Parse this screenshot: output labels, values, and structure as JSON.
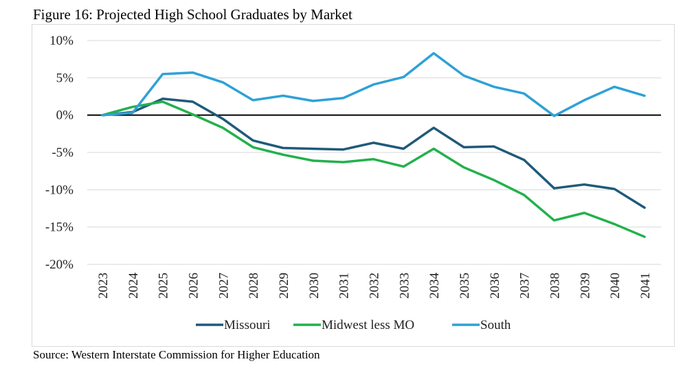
{
  "figure_title": "Figure 16: Projected High School Graduates by Market",
  "source": "Source: Western Interstate Commission for Higher Education",
  "chart_data": {
    "type": "line",
    "title": "Figure 16: Projected High School Graduates by Market",
    "xlabel": "",
    "ylabel": "",
    "categories": [
      "2023",
      "2024",
      "2025",
      "2026",
      "2027",
      "2028",
      "2029",
      "2030",
      "2031",
      "2032",
      "2033",
      "2034",
      "2035",
      "2036",
      "2037",
      "2038",
      "2039",
      "2040",
      "2041"
    ],
    "ylim": [
      -20,
      10
    ],
    "yticks": [
      10,
      5,
      0,
      -5,
      -10,
      -15,
      -20
    ],
    "ytick_labels": [
      "10%",
      "5%",
      "0%",
      "-5%",
      "-10%",
      "-15%",
      "-20%"
    ],
    "grid": true,
    "legend_position": "bottom",
    "series": [
      {
        "name": "Missouri",
        "color": "#1f5a7a",
        "values": [
          0.0,
          0.4,
          2.2,
          1.8,
          -0.5,
          -3.4,
          -4.4,
          -4.5,
          -4.6,
          -3.7,
          -4.5,
          -1.7,
          -4.3,
          -4.2,
          -6.0,
          -9.8,
          -9.3,
          -9.9,
          -12.4
        ]
      },
      {
        "name": "Midwest less MO",
        "color": "#22b14c",
        "values": [
          0.0,
          1.1,
          1.8,
          0.1,
          -1.7,
          -4.3,
          -5.3,
          -6.1,
          -6.3,
          -5.9,
          -6.9,
          -4.5,
          -7.0,
          -8.7,
          -10.7,
          -14.1,
          -13.1,
          -14.6,
          -16.3
        ]
      },
      {
        "name": "South",
        "color": "#2ea1d7",
        "values": [
          0.0,
          0.3,
          5.5,
          5.7,
          4.4,
          2.0,
          2.6,
          1.9,
          2.3,
          4.1,
          5.1,
          8.3,
          5.3,
          3.8,
          2.9,
          -0.1,
          2.0,
          3.8,
          2.6
        ]
      }
    ]
  }
}
